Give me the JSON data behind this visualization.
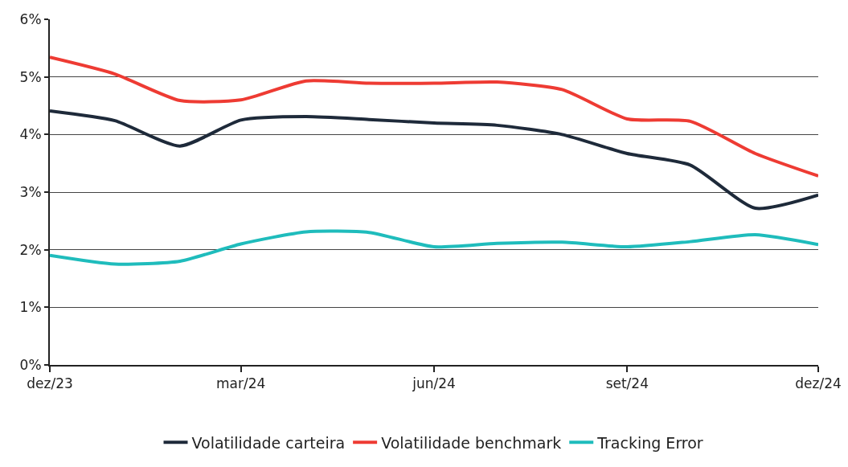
{
  "chart_data": {
    "type": "line",
    "x": [
      "2023-12",
      "2024-01",
      "2024-02",
      "2024-03",
      "2024-04",
      "2024-05",
      "2024-06",
      "2024-07",
      "2024-08",
      "2024-09",
      "2024-10",
      "2024-11",
      "2024-12"
    ],
    "series": [
      {
        "name": "Volatilidade carteira",
        "color": "#1e2a3a",
        "values": [
          4.41,
          4.24,
          3.8,
          4.25,
          4.31,
          4.26,
          4.2,
          4.16,
          4.0,
          3.67,
          3.47,
          2.72,
          2.95
        ]
      },
      {
        "name": "Volatilidade benchmark",
        "color": "#ee3b33",
        "values": [
          5.34,
          5.05,
          4.59,
          4.6,
          4.93,
          4.89,
          4.89,
          4.91,
          4.78,
          4.27,
          4.23,
          3.67,
          3.28
        ]
      },
      {
        "name": "Tracking Error",
        "color": "#1fbcbc",
        "values": [
          1.9,
          1.75,
          1.8,
          2.1,
          2.31,
          2.3,
          2.05,
          2.11,
          2.13,
          2.05,
          2.14,
          2.26,
          2.09
        ]
      }
    ],
    "xlim": [
      "2023-12",
      "2024-12"
    ],
    "xticks": [
      {
        "value": "2023-12",
        "label": "dez/23"
      },
      {
        "value": "2024-03",
        "label": "mar/24"
      },
      {
        "value": "2024-06",
        "label": "jun/24"
      },
      {
        "value": "2024-09",
        "label": "set/24"
      },
      {
        "value": "2024-12",
        "label": "dez/24"
      }
    ],
    "ylim": [
      0,
      6
    ],
    "yticks": [
      {
        "value": 0,
        "label": "0%"
      },
      {
        "value": 1,
        "label": "1%"
      },
      {
        "value": 2,
        "label": "2%"
      },
      {
        "value": 3,
        "label": "3%"
      },
      {
        "value": 4,
        "label": "4%"
      },
      {
        "value": 5,
        "label": "5%"
      },
      {
        "value": 6,
        "label": "6%"
      }
    ],
    "grid": "y",
    "legend": "bottom",
    "marker": "none",
    "line_style": "solid"
  }
}
